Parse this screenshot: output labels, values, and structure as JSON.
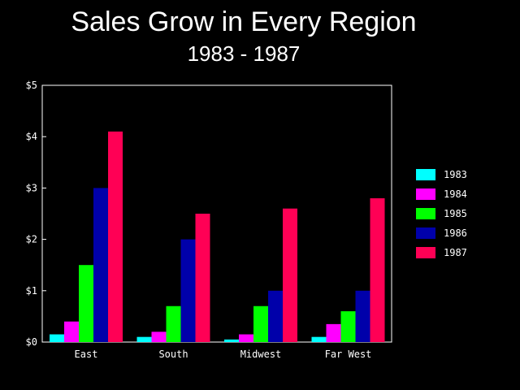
{
  "chart_data": {
    "type": "bar",
    "title": "Sales Grow in Every Region",
    "subtitle": "1983 - 1987",
    "xlabel": "",
    "ylabel": "",
    "categories": [
      "East",
      "South",
      "Midwest",
      "Far West"
    ],
    "y_ticks": [
      "$0",
      "$1",
      "$2",
      "$3",
      "$4",
      "$5"
    ],
    "ylim": [
      0,
      5
    ],
    "grid": false,
    "legend_position": "right",
    "series": [
      {
        "name": "1983",
        "color": "#00ffff",
        "values": [
          0.15,
          0.1,
          0.05,
          0.1
        ]
      },
      {
        "name": "1984",
        "color": "#ff00ff",
        "values": [
          0.4,
          0.2,
          0.15,
          0.35
        ]
      },
      {
        "name": "1985",
        "color": "#00ff00",
        "values": [
          1.5,
          0.7,
          0.7,
          0.6
        ]
      },
      {
        "name": "1986",
        "color": "#0000aa",
        "values": [
          3.0,
          2.0,
          1.0,
          1.0
        ]
      },
      {
        "name": "1987",
        "color": "#ff0055",
        "values": [
          4.1,
          2.5,
          2.6,
          2.8
        ]
      }
    ]
  }
}
